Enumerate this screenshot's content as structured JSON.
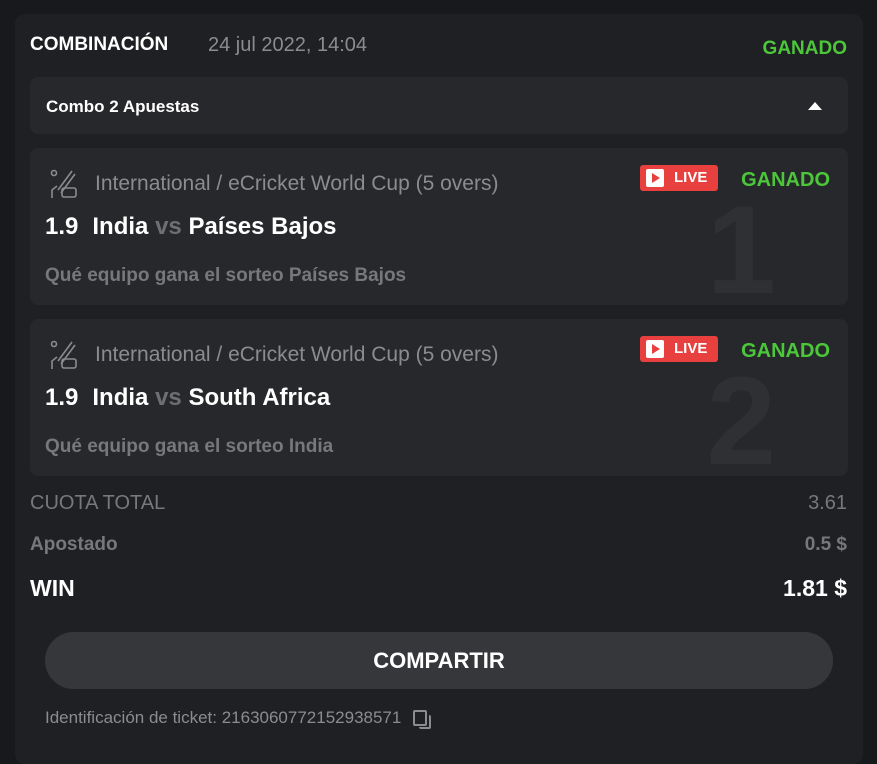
{
  "header": {
    "title": "COMBINACIÓN",
    "date": "24 jul 2022, 14:04",
    "status": "GANADO"
  },
  "combo": {
    "label": "Combo 2 Apuestas"
  },
  "bets": [
    {
      "league": "International / eCricket World Cup (5 overs)",
      "live": "LIVE",
      "status": "GANADO",
      "odds": "1.9",
      "home": "India",
      "vs": "vs",
      "away": "Países Bajos",
      "market": "Qué equipo gana el sorteo Países Bajos",
      "index": "1"
    },
    {
      "league": "International / eCricket World Cup (5 overs)",
      "live": "LIVE",
      "status": "GANADO",
      "odds": "1.9",
      "home": "India",
      "vs": "vs",
      "away": "South Africa",
      "market": "Qué equipo gana el sorteo India",
      "index": "2"
    }
  ],
  "summary": {
    "total_odds_label": "CUOTA TOTAL",
    "total_odds": "3.61",
    "staked_label": "Apostado",
    "staked": "0.5 $",
    "win_label": "WIN",
    "win": "1.81 $"
  },
  "share_label": "COMPARTIR",
  "ticket": {
    "label": "Identificación de ticket: 2163060772152938571"
  },
  "colors": {
    "won": "#4cc73a",
    "live": "#e8403f"
  }
}
